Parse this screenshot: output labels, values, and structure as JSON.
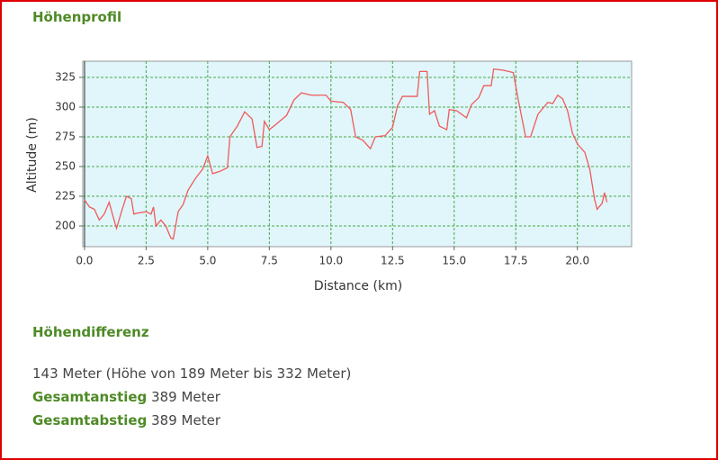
{
  "chart_data": {
    "type": "line",
    "xlabel": "Distance (km)",
    "ylabel": "Altitude (m)",
    "x": [
      0,
      0.2,
      0.4,
      0.6,
      0.8,
      1.0,
      1.2,
      1.3,
      1.5,
      1.7,
      1.9,
      2.0,
      2.2,
      2.5,
      2.7,
      2.8,
      2.9,
      3.1,
      3.3,
      3.5,
      3.6,
      3.8,
      4.0,
      4.2,
      4.5,
      4.8,
      5.0,
      5.2,
      5.5,
      5.8,
      5.9,
      6.2,
      6.5,
      6.8,
      7.0,
      7.2,
      7.3,
      7.5,
      7.8,
      8.2,
      8.5,
      8.8,
      9.2,
      9.8,
      10.0,
      10.5,
      10.8,
      11.0,
      11.3,
      11.6,
      11.8,
      12.2,
      12.5,
      12.7,
      12.9,
      13.5,
      13.6,
      13.9,
      14.0,
      14.2,
      14.4,
      14.7,
      14.8,
      15.1,
      15.5,
      15.7,
      16.0,
      16.2,
      16.5,
      16.6,
      17.0,
      17.4,
      17.6,
      17.9,
      18.1,
      18.4,
      18.8,
      19.0,
      19.2,
      19.4,
      19.6,
      19.8,
      20.0,
      20.3,
      20.5,
      20.7,
      20.8,
      21.0,
      21.1,
      21.2
    ],
    "values": [
      222,
      216,
      214,
      205,
      210,
      220,
      205,
      198,
      212,
      225,
      223,
      210,
      211,
      212,
      210,
      216,
      200,
      205,
      200,
      190,
      189,
      212,
      218,
      230,
      240,
      248,
      259,
      244,
      246,
      249,
      275,
      284,
      296,
      290,
      266,
      267,
      288,
      281,
      286,
      293,
      306,
      312,
      310,
      310,
      305,
      304,
      298,
      275,
      272,
      265,
      275,
      276,
      283,
      301,
      309,
      309,
      330,
      330,
      294,
      297,
      284,
      281,
      298,
      297,
      291,
      302,
      308,
      318,
      318,
      332,
      331,
      329,
      306,
      275,
      275,
      294,
      304,
      303,
      310,
      307,
      297,
      278,
      269,
      262,
      248,
      222,
      214,
      219,
      228,
      220
    ],
    "color": "#f05a5a",
    "background": "#e0f6fb",
    "grid": true,
    "grid_color": "#4aa84a",
    "xlim": [
      -0.07,
      22.2
    ],
    "ylim": [
      182.6,
      338.6
    ],
    "xticks": [
      {
        "value": 0,
        "label": "0.0"
      },
      2.5,
      {
        "value": 5,
        "label": "5.0"
      },
      7.5,
      {
        "value": 10,
        "label": "10.0"
      },
      12.5,
      {
        "value": 15,
        "label": "15.0"
      },
      17.5,
      {
        "value": 20,
        "label": "20.0"
      }
    ],
    "yticks": [
      200,
      225,
      250,
      275,
      300,
      325
    ]
  },
  "profile_title": "Höhenprofil",
  "difference": {
    "title": "Höhendifferenz",
    "summary": "143 Meter (Höhe von 189 Meter bis 332 Meter)",
    "ascent_label": "Gesamtanstieg",
    "ascent_value": "389 Meter",
    "descent_label": "Gesamtabstieg",
    "descent_value": "389 Meter"
  }
}
